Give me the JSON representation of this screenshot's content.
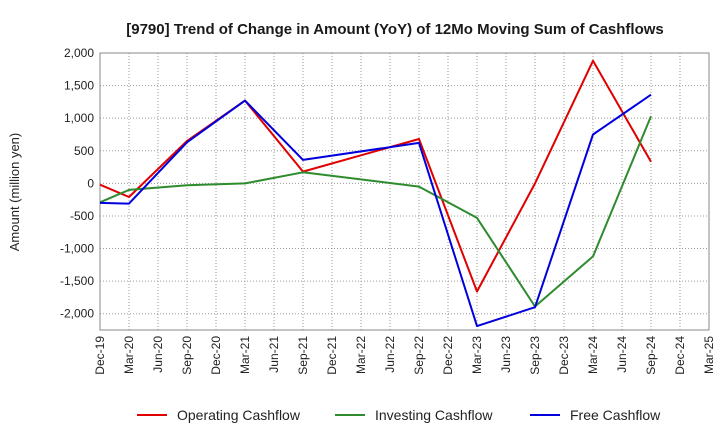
{
  "chart_data": {
    "type": "line",
    "title": "[9790]  Trend of Change in Amount (YoY) of 12Mo Moving Sum of Cashflows",
    "xlabel": "",
    "ylabel": "Amount (million yen)",
    "ylim": [
      -2250,
      2000
    ],
    "yticks": [
      2000,
      1500,
      1000,
      500,
      0,
      -500,
      -1000,
      -1500,
      -2000
    ],
    "ytick_labels": [
      "2,000",
      "1,500",
      "1,000",
      "500",
      "0",
      "-500",
      "-1,000",
      "-1,500",
      "-2,000"
    ],
    "categories": [
      "Dec-19",
      "Mar-20",
      "Jun-20",
      "Sep-20",
      "Dec-20",
      "Mar-21",
      "Jun-21",
      "Sep-21",
      "Dec-21",
      "Mar-22",
      "Jun-22",
      "Sep-22",
      "Dec-22",
      "Mar-23",
      "Jun-23",
      "Sep-23",
      "Dec-23",
      "Mar-24",
      "Jun-24",
      "Sep-24",
      "Dec-24",
      "Mar-25"
    ],
    "grid": true,
    "legend_position": "bottom",
    "series": [
      {
        "name": "Operating Cashflow",
        "color": "#e00000",
        "points": [
          [
            0,
            -20
          ],
          [
            1,
            -210
          ],
          [
            3,
            650
          ],
          [
            5,
            1270
          ],
          [
            7,
            180
          ],
          [
            11,
            680
          ],
          [
            13,
            -1660
          ],
          [
            15,
            0
          ],
          [
            17,
            1880
          ],
          [
            19,
            330
          ]
        ]
      },
      {
        "name": "Investing Cashflow",
        "color": "#2e8b2e",
        "points": [
          [
            0,
            -290
          ],
          [
            1,
            -100
          ],
          [
            3,
            -30
          ],
          [
            5,
            0
          ],
          [
            7,
            170
          ],
          [
            11,
            -50
          ],
          [
            13,
            -530
          ],
          [
            15,
            -1890
          ],
          [
            17,
            -1120
          ],
          [
            19,
            1030
          ]
        ]
      },
      {
        "name": "Free Cashflow",
        "color": "#0000dd",
        "points": [
          [
            0,
            -300
          ],
          [
            1,
            -310
          ],
          [
            3,
            630
          ],
          [
            5,
            1270
          ],
          [
            7,
            360
          ],
          [
            11,
            620
          ],
          [
            13,
            -2190
          ],
          [
            15,
            -1900
          ],
          [
            17,
            750
          ],
          [
            19,
            1360
          ]
        ]
      }
    ]
  }
}
